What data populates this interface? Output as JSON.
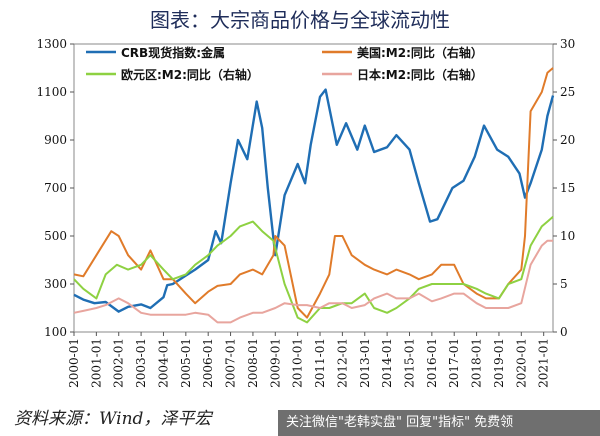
{
  "title": "图表：大宗商品价格与全球流动性",
  "source": "资料来源：Wind，泽平宏",
  "banner": "关注微信\"老韩实盘\" 回复\"指标\" 免费领",
  "chart_data": {
    "type": "line",
    "x": [
      "2000-01",
      "2001-01",
      "2002-01",
      "2003-01",
      "2004-01",
      "2005-01",
      "2006-01",
      "2007-01",
      "2008-01",
      "2009-01",
      "2010-01",
      "2011-01",
      "2012-01",
      "2013-01",
      "2014-01",
      "2015-01",
      "2016-01",
      "2017-01",
      "2018-01",
      "2019-01",
      "2020-01",
      "2021-01"
    ],
    "xlim": [
      "2000-01",
      "2021-06"
    ],
    "y_left": {
      "lim": [
        100,
        1300
      ],
      "ticks": [
        100,
        300,
        500,
        700,
        900,
        1100,
        1300
      ]
    },
    "y_right": {
      "lim": [
        0,
        30
      ],
      "ticks": [
        0,
        5,
        10,
        15,
        20,
        25,
        30
      ]
    },
    "grid": false,
    "legend": "top",
    "series": [
      {
        "name": "CRB现货指数:金属",
        "axis": "left",
        "color": "#1f6eb4",
        "points": [
          [
            "2000-01",
            255
          ],
          [
            "2000-06",
            235
          ],
          [
            "2000-12",
            220
          ],
          [
            "2001-06",
            225
          ],
          [
            "2002-01",
            185
          ],
          [
            "2002-06",
            205
          ],
          [
            "2003-01",
            215
          ],
          [
            "2003-06",
            200
          ],
          [
            "2004-01",
            245
          ],
          [
            "2004-03",
            295
          ],
          [
            "2004-06",
            300
          ],
          [
            "2004-12",
            330
          ],
          [
            "2005-06",
            360
          ],
          [
            "2006-01",
            400
          ],
          [
            "2006-05",
            520
          ],
          [
            "2006-08",
            470
          ],
          [
            "2007-01",
            720
          ],
          [
            "2007-05",
            900
          ],
          [
            "2007-10",
            820
          ],
          [
            "2008-03",
            1060
          ],
          [
            "2008-06",
            950
          ],
          [
            "2008-09",
            700
          ],
          [
            "2009-01",
            420
          ],
          [
            "2009-06",
            670
          ],
          [
            "2010-01",
            800
          ],
          [
            "2010-05",
            720
          ],
          [
            "2010-08",
            880
          ],
          [
            "2011-01",
            1080
          ],
          [
            "2011-04",
            1110
          ],
          [
            "2011-10",
            880
          ],
          [
            "2012-03",
            970
          ],
          [
            "2012-09",
            860
          ],
          [
            "2013-01",
            960
          ],
          [
            "2013-06",
            850
          ],
          [
            "2014-01",
            870
          ],
          [
            "2014-06",
            920
          ],
          [
            "2015-01",
            860
          ],
          [
            "2015-06",
            720
          ],
          [
            "2015-12",
            560
          ],
          [
            "2016-04",
            570
          ],
          [
            "2016-12",
            700
          ],
          [
            "2017-06",
            730
          ],
          [
            "2017-12",
            830
          ],
          [
            "2018-05",
            960
          ],
          [
            "2018-12",
            860
          ],
          [
            "2019-06",
            830
          ],
          [
            "2019-12",
            760
          ],
          [
            "2020-03",
            660
          ],
          [
            "2020-06",
            720
          ],
          [
            "2020-12",
            860
          ],
          [
            "2021-03",
            1000
          ],
          [
            "2021-06",
            1085
          ]
        ]
      },
      {
        "name": "美国:M2:同比（右轴）",
        "axis": "right",
        "color": "#e07b2a",
        "points": [
          [
            "2000-01",
            6.0
          ],
          [
            "2000-06",
            5.8
          ],
          [
            "2001-01",
            8.0
          ],
          [
            "2001-09",
            10.5
          ],
          [
            "2002-01",
            10.0
          ],
          [
            "2002-06",
            8.0
          ],
          [
            "2003-01",
            6.5
          ],
          [
            "2003-06",
            8.5
          ],
          [
            "2004-01",
            5.5
          ],
          [
            "2004-06",
            5.5
          ],
          [
            "2005-01",
            4.0
          ],
          [
            "2005-06",
            3.0
          ],
          [
            "2006-01",
            4.2
          ],
          [
            "2006-06",
            4.8
          ],
          [
            "2007-01",
            5.0
          ],
          [
            "2007-06",
            6.0
          ],
          [
            "2008-01",
            6.5
          ],
          [
            "2008-06",
            6.0
          ],
          [
            "2008-12",
            8.0
          ],
          [
            "2009-01",
            10.0
          ],
          [
            "2009-06",
            9.0
          ],
          [
            "2010-01",
            2.5
          ],
          [
            "2010-06",
            1.5
          ],
          [
            "2011-01",
            4.0
          ],
          [
            "2011-06",
            6.0
          ],
          [
            "2011-09",
            10.0
          ],
          [
            "2012-01",
            10.0
          ],
          [
            "2012-06",
            8.0
          ],
          [
            "2013-01",
            7.0
          ],
          [
            "2013-06",
            6.5
          ],
          [
            "2014-01",
            6.0
          ],
          [
            "2014-06",
            6.5
          ],
          [
            "2015-01",
            6.0
          ],
          [
            "2015-06",
            5.5
          ],
          [
            "2016-01",
            6.0
          ],
          [
            "2016-06",
            7.0
          ],
          [
            "2017-01",
            7.0
          ],
          [
            "2017-06",
            5.0
          ],
          [
            "2018-01",
            4.0
          ],
          [
            "2018-06",
            3.5
          ],
          [
            "2019-01",
            3.5
          ],
          [
            "2019-06",
            5.0
          ],
          [
            "2020-01",
            6.5
          ],
          [
            "2020-03",
            10.0
          ],
          [
            "2020-06",
            23.0
          ],
          [
            "2020-12",
            25.0
          ],
          [
            "2021-03",
            27.0
          ],
          [
            "2021-06",
            27.5
          ]
        ]
      },
      {
        "name": "欧元区:M2:同比（右轴）",
        "axis": "right",
        "color": "#8ed142",
        "points": [
          [
            "2000-01",
            5.5
          ],
          [
            "2000-06",
            4.5
          ],
          [
            "2001-01",
            3.5
          ],
          [
            "2001-06",
            6.0
          ],
          [
            "2001-12",
            7.0
          ],
          [
            "2002-06",
            6.5
          ],
          [
            "2003-01",
            7.0
          ],
          [
            "2003-06",
            8.0
          ],
          [
            "2004-01",
            6.5
          ],
          [
            "2004-06",
            5.5
          ],
          [
            "2005-01",
            6.0
          ],
          [
            "2005-06",
            7.0
          ],
          [
            "2006-01",
            8.0
          ],
          [
            "2006-06",
            9.0
          ],
          [
            "2007-01",
            10.0
          ],
          [
            "2007-06",
            11.0
          ],
          [
            "2008-01",
            11.5
          ],
          [
            "2008-06",
            10.5
          ],
          [
            "2008-12",
            9.5
          ],
          [
            "2009-06",
            5.0
          ],
          [
            "2010-01",
            1.5
          ],
          [
            "2010-06",
            1.0
          ],
          [
            "2011-01",
            2.5
          ],
          [
            "2011-06",
            2.5
          ],
          [
            "2012-01",
            3.0
          ],
          [
            "2012-06",
            3.0
          ],
          [
            "2013-01",
            4.0
          ],
          [
            "2013-06",
            2.5
          ],
          [
            "2014-01",
            2.0
          ],
          [
            "2014-06",
            2.5
          ],
          [
            "2015-01",
            3.5
          ],
          [
            "2015-06",
            4.5
          ],
          [
            "2016-01",
            5.0
          ],
          [
            "2016-06",
            5.0
          ],
          [
            "2017-01",
            5.0
          ],
          [
            "2017-06",
            5.0
          ],
          [
            "2018-01",
            4.5
          ],
          [
            "2018-06",
            4.0
          ],
          [
            "2019-01",
            3.5
          ],
          [
            "2019-06",
            5.0
          ],
          [
            "2020-01",
            5.5
          ],
          [
            "2020-06",
            9.0
          ],
          [
            "2020-12",
            11.0
          ],
          [
            "2021-03",
            11.5
          ],
          [
            "2021-06",
            12.0
          ]
        ]
      },
      {
        "name": "日本:M2:同比（右轴）",
        "axis": "right",
        "color": "#e8a59e",
        "points": [
          [
            "2000-01",
            2.0
          ],
          [
            "2000-06",
            2.2
          ],
          [
            "2001-01",
            2.5
          ],
          [
            "2001-06",
            2.8
          ],
          [
            "2002-01",
            3.5
          ],
          [
            "2002-06",
            3.0
          ],
          [
            "2003-01",
            2.0
          ],
          [
            "2003-06",
            1.8
          ],
          [
            "2004-01",
            1.8
          ],
          [
            "2004-06",
            1.8
          ],
          [
            "2005-01",
            1.8
          ],
          [
            "2005-06",
            2.0
          ],
          [
            "2006-01",
            1.8
          ],
          [
            "2006-06",
            1.0
          ],
          [
            "2007-01",
            1.0
          ],
          [
            "2007-06",
            1.5
          ],
          [
            "2008-01",
            2.0
          ],
          [
            "2008-06",
            2.0
          ],
          [
            "2009-01",
            2.5
          ],
          [
            "2009-06",
            3.0
          ],
          [
            "2010-01",
            2.8
          ],
          [
            "2010-06",
            2.8
          ],
          [
            "2011-01",
            2.5
          ],
          [
            "2011-06",
            3.0
          ],
          [
            "2012-01",
            3.0
          ],
          [
            "2012-06",
            2.5
          ],
          [
            "2013-01",
            2.8
          ],
          [
            "2013-06",
            3.5
          ],
          [
            "2014-01",
            4.0
          ],
          [
            "2014-06",
            3.5
          ],
          [
            "2015-01",
            3.5
          ],
          [
            "2015-06",
            4.0
          ],
          [
            "2016-01",
            3.2
          ],
          [
            "2016-06",
            3.5
          ],
          [
            "2017-01",
            4.0
          ],
          [
            "2017-06",
            4.0
          ],
          [
            "2018-01",
            3.0
          ],
          [
            "2018-06",
            2.5
          ],
          [
            "2019-01",
            2.5
          ],
          [
            "2019-06",
            2.5
          ],
          [
            "2020-01",
            3.0
          ],
          [
            "2020-06",
            7.0
          ],
          [
            "2020-12",
            9.0
          ],
          [
            "2021-03",
            9.5
          ],
          [
            "2021-06",
            9.5
          ]
        ]
      }
    ]
  }
}
